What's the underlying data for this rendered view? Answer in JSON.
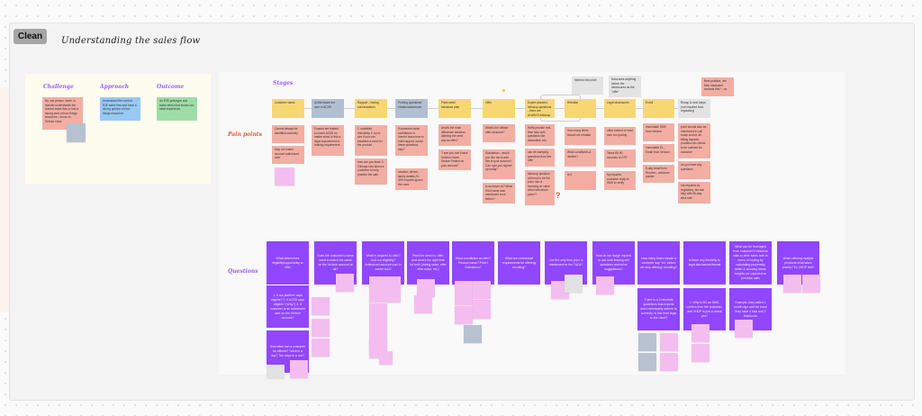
{
  "toolbar": {
    "clean_label": "Clean"
  },
  "board_title": "Understanding the sales flow",
  "intro": {
    "challenge": {
      "label": "Challenge",
      "text": "No one person, team, or domain understands the current sales flow or has a strong view of how things should be - focus on Sebuto voice"
    },
    "approach": {
      "label": "Approach",
      "text": "Understand the current E2E sales flow and have a strong opinion of how things should be"
    },
    "outcome": {
      "label": "Outcome",
      "text": "An E2E prototype and audio demo that shows our ideal experience"
    }
  },
  "labels": {
    "stages": "Stages",
    "pain_points": "Pain points",
    "questions": "Questions"
  },
  "floating_notes": {
    "mention_price": "Mention the price",
    "kara_sees": "Kara sees anything before the disclosures as the \"offer\"",
    "best_practice": "Best practice, are they measured towards this? - no"
  },
  "stages": [
    {
      "label": "Customer name",
      "style": "yellow",
      "pain_points": [
        "Cannot always be identified correctly",
        "May not match account authorized user"
      ]
    },
    {
      "label": "Authenticate the user in ACSS",
      "style": "blue",
      "pain_points": [
        "Experts are trained to check ACSS no matter what, is this a legal requirement or training requirement"
      ]
    },
    {
      "label": "Rapport - having conversations",
      "style": "yellow",
      "pain_points": [
        "1. establish friendship 2. try to see if you can establish a need for the product",
        "how can you learn 2-3 things new about a customer to help position the sale"
      ]
    },
    {
      "label": "Probing questions/ breadcrumbs/cues",
      "style": "blue",
      "pain_points": [
        "If someone lacks confidence or doesn't know how to build rapport, would these questions help?",
        "location, device, family details 20-30% experts ignore the cues"
      ]
    },
    {
      "label": "Plant seed/ Introduce plan",
      "style": "yellow",
      "pain_points": [
        "what's the main difference between planting the seed and an offer?",
        "\"I see you don't have Verizon Home Device Protect on your account\""
      ]
    },
    {
      "label": "Offer",
      "style": "yellow",
      "pain_points": [
        "What's the official offer structure?",
        "Solicitation - would you like me to add this to your account? Can I get you signed up today?",
        "Is acronym ok? What if full name was mentioned once before?"
      ]
    },
    {
      "label": "Expert answers followup questions - there are ALWAYS followup questions",
      "style": "yellow",
      "pain_points": [
        "HMM provide real-time help with questions like deductible, etc.",
        "can be clarifying questions from the offer",
        "followup question will tend to be the price  risk of focusing on value when talk about price??"
      ]
    },
    {
      "label": "Rebuttal",
      "style": "yellow",
      "pain_points": [
        "How many times should we rebuttal",
        "What constitutes a decline?",
        "Is n"
      ]
    },
    {
      "label": "Legal disclosures",
      "style": "yellow",
      "pain_points": [
        "often rushed or read over too quickly",
        "Takes 60-90 seconds of CRT",
        "5g requires customer reply to SMS to verify"
      ]
    },
    {
      "label": "Enroll",
      "style": "yellow",
      "pain_points": [
        "Immediate SMS from Verizon",
        "Immediate E1 - Email from Verizon",
        "5-day email from Rourton - welcome packet"
      ]
    },
    {
      "label": "Recap & next steps (not required from regulatory)",
      "style": "gray",
      "pain_points": [
        "price should also be mentioned in call recap at end, all billing impacts, proration etc needs to be outlined for customer",
        "do you have any questions",
        "not required by regulatory, but can help with 30-day stick rate"
      ]
    }
  ],
  "questions": [
    "What determines eligibility/opportunity to offer",
    "Does the customer's name need to match the name on the Verizon account at all?",
    "What is required to offer? Just our eligibility? Authorized account user in carrier tool?",
    "Plant the seed vs. offer, and what's the right time for both (during solve, offer after solve, etc.)",
    "What constitutes an offer? Product name? Price? Solicitation?",
    "What are contractual requirements for offering/ enrolling?",
    "Can the only time price is mentioned be the T&Cs?",
    "How do we nudge experts to ask both leading sell questions and solve suggestions?",
    "How many times should a customer say \"no\" before we stop offering/ rebutting?",
    "Is there any flexibility to legal disclosures/format",
    "What can be leveraged from customer's historical calls to drive sales both in terms of routing by calculating propensity better & showing items/ insights we captured on previous calls",
    "When offering multiple products what takes priority? Ex VHDP first?"
  ],
  "sub_questions": [
    "1. If our platform says eligible? 2. If ACSS says eligible? (Why?) 3. If customer is an authorized user on the Verizon account?",
    "How often can a customer be offered? Twice in a day? Two days in a row?",
    "There is a 3 rebuttals guidelines that experts don't necessarily adhere to currently. Is this from legal or the client?",
    "1. Why is 5G an SMS-confirm from the customer, and VHDP is just a verbal yes?",
    "Example, they called 1 month ago and we know they have 4 kids and 2 Macbooks"
  ],
  "colors": {
    "stage": "#f7d774",
    "stage_blue": "#b2bfd2",
    "pain": "#f2aea3",
    "question": "#9146ff",
    "sticky": "#f4bdf0",
    "label_purple": "#9b5cff",
    "label_red": "#e8553a"
  }
}
